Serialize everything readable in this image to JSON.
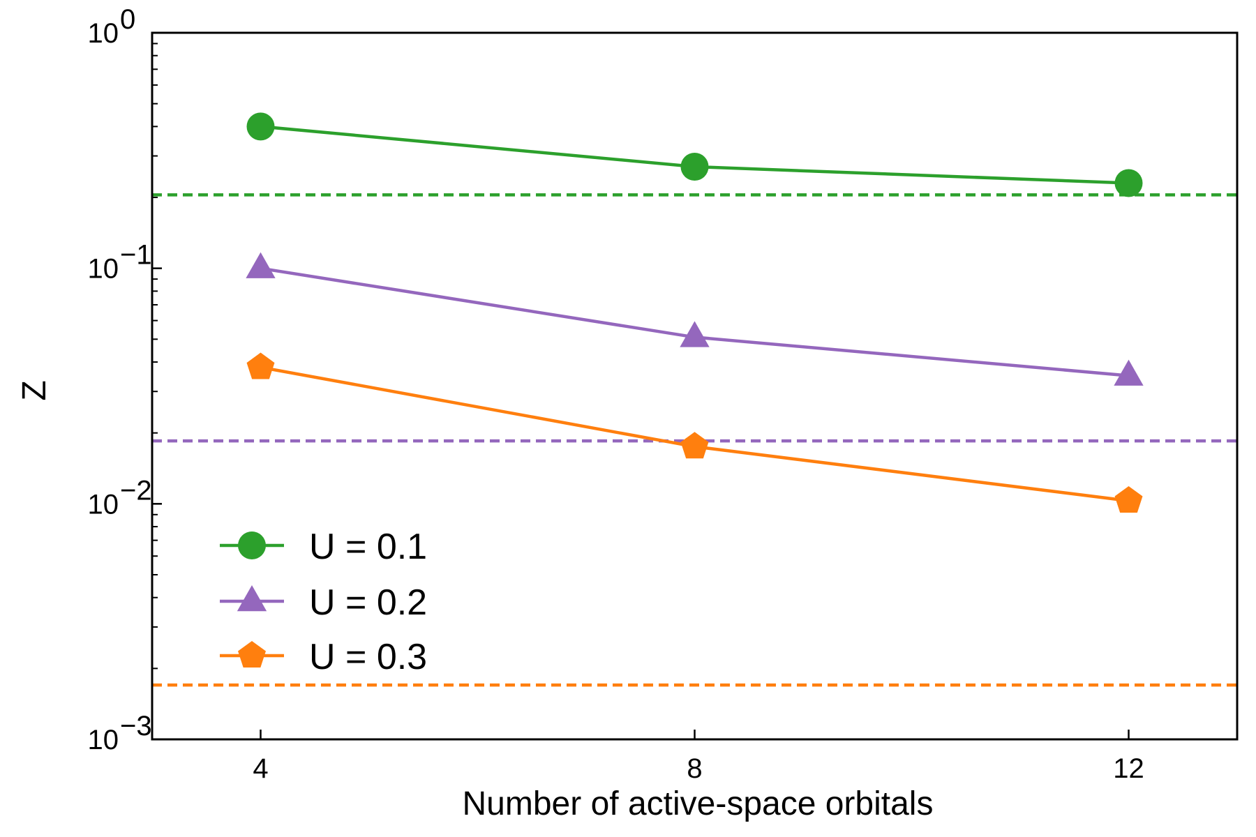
{
  "chart_data": {
    "type": "line",
    "title": "",
    "xlabel": "Number of active-space orbitals",
    "ylabel": "Z",
    "yscale": "log",
    "ylim": [
      0.001,
      1
    ],
    "xlim": [
      3,
      13
    ],
    "xticks": [
      4,
      8,
      12
    ],
    "xtick_labels": [
      "4",
      "8",
      "12"
    ],
    "yticks": [
      {
        "value": 1,
        "base": "10",
        "exp": "0"
      },
      {
        "value": 0.1,
        "base": "10",
        "exp": "−1"
      },
      {
        "value": 0.01,
        "base": "10",
        "exp": "−2"
      },
      {
        "value": 0.001,
        "base": "10",
        "exp": "−3"
      }
    ],
    "legend_position": "lower-left",
    "series": [
      {
        "name": "U = 0.1",
        "color": "#2ca02c",
        "marker": "circle",
        "x": [
          4,
          8,
          12
        ],
        "values": [
          0.4,
          0.27,
          0.23
        ],
        "reference": 0.205
      },
      {
        "name": "U = 0.2",
        "color": "#9467bd",
        "marker": "triangle",
        "x": [
          4,
          8,
          12
        ],
        "values": [
          0.1,
          0.051,
          0.035
        ],
        "reference": 0.0185
      },
      {
        "name": "U = 0.3",
        "color": "#ff7f0e",
        "marker": "pentagon",
        "x": [
          4,
          8,
          12
        ],
        "values": [
          0.038,
          0.0175,
          0.0103
        ],
        "reference": 0.0017
      }
    ]
  }
}
